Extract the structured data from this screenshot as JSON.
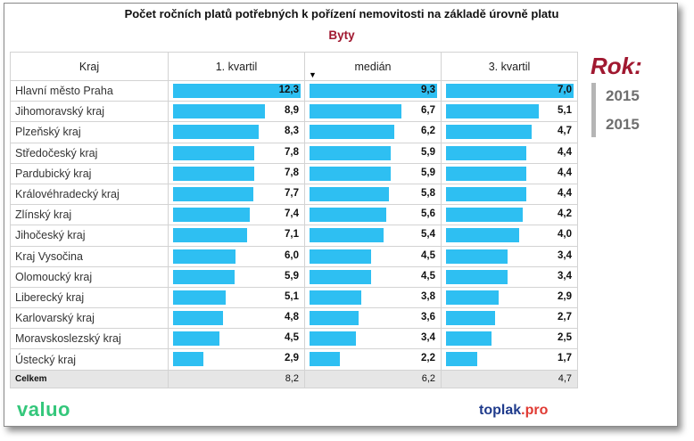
{
  "title": "Počet ročních platů potřebných k pořízení nemovitosti na základě úrovně platu",
  "subtitle": "Byty",
  "columns": [
    "Kraj",
    "1. kvartil",
    "medián",
    "3. kvartil"
  ],
  "rows": [
    {
      "region": "Hlavní město Praha",
      "q1": "12,3",
      "median": "9,3",
      "q3": "7,0"
    },
    {
      "region": "Jihomoravský kraj",
      "q1": "8,9",
      "median": "6,7",
      "q3": "5,1"
    },
    {
      "region": "Plzeňský kraj",
      "q1": "8,3",
      "median": "6,2",
      "q3": "4,7"
    },
    {
      "region": "Středočeský kraj",
      "q1": "7,8",
      "median": "5,9",
      "q3": "4,4"
    },
    {
      "region": "Pardubický kraj",
      "q1": "7,8",
      "median": "5,9",
      "q3": "4,4"
    },
    {
      "region": "Královéhradecký kraj",
      "q1": "7,7",
      "median": "5,8",
      "q3": "4,4"
    },
    {
      "region": "Zlínský kraj",
      "q1": "7,4",
      "median": "5,6",
      "q3": "4,2"
    },
    {
      "region": "Jihočeský kraj",
      "q1": "7,1",
      "median": "5,4",
      "q3": "4,0"
    },
    {
      "region": "Kraj Vysočina",
      "q1": "6,0",
      "median": "4,5",
      "q3": "3,4"
    },
    {
      "region": "Olomoucký kraj",
      "q1": "5,9",
      "median": "4,5",
      "q3": "3,4"
    },
    {
      "region": "Liberecký kraj",
      "q1": "5,1",
      "median": "3,8",
      "q3": "2,9"
    },
    {
      "region": "Karlovarský kraj",
      "q1": "4,8",
      "median": "3,6",
      "q3": "2,7"
    },
    {
      "region": "Moravskoslezský kraj",
      "q1": "4,5",
      "median": "3,4",
      "q3": "2,5"
    },
    {
      "region": "Ústecký kraj",
      "q1": "2,9",
      "median": "2,2",
      "q3": "1,7"
    }
  ],
  "total": {
    "label": "Celkem",
    "q1": "8,2",
    "median": "6,2",
    "q3": "4,7"
  },
  "rok": {
    "label": "Rok:",
    "years": [
      "2015",
      "2015"
    ]
  },
  "logos": {
    "valuo": "valuo",
    "toplak_main": "toplak",
    "toplak_suffix": ".pro"
  },
  "colors": {
    "bar": "#2ebff2",
    "accent": "#a01830",
    "total_bg": "#e6e6e6",
    "valuo": "#34c77b",
    "toplak": "#1f3b8c",
    "toplak_suffix": "#e03a33"
  },
  "chart_data": {
    "type": "bar",
    "orientation": "horizontal",
    "title": "Počet ročních platů potřebných k pořízení nemovitosti na základě úrovně platu",
    "subtitle": "Byty",
    "categories": [
      "Hlavní město Praha",
      "Jihomoravský kraj",
      "Plzeňský kraj",
      "Středočeský kraj",
      "Pardubický kraj",
      "Královéhradecký kraj",
      "Zlínský kraj",
      "Jihočeský kraj",
      "Kraj Vysočina",
      "Olomoucký kraj",
      "Liberecký kraj",
      "Karlovarský kraj",
      "Moravskoslezský kraj",
      "Ústecký kraj"
    ],
    "series": [
      {
        "name": "1. kvartil",
        "values": [
          12.3,
          8.9,
          8.3,
          7.8,
          7.8,
          7.7,
          7.4,
          7.1,
          6.0,
          5.9,
          5.1,
          4.8,
          4.5,
          2.9
        ]
      },
      {
        "name": "medián",
        "values": [
          9.3,
          6.7,
          6.2,
          5.9,
          5.9,
          5.8,
          5.6,
          5.4,
          4.5,
          4.5,
          3.8,
          3.6,
          3.4,
          2.2
        ]
      },
      {
        "name": "3. kvartil",
        "values": [
          7.0,
          5.1,
          4.7,
          4.4,
          4.4,
          4.4,
          4.2,
          4.0,
          3.4,
          3.4,
          2.9,
          2.7,
          2.5,
          1.7
        ]
      }
    ],
    "totals": {
      "1. kvartil": 8.2,
      "medián": 6.2,
      "3. kvartil": 4.7
    }
  }
}
